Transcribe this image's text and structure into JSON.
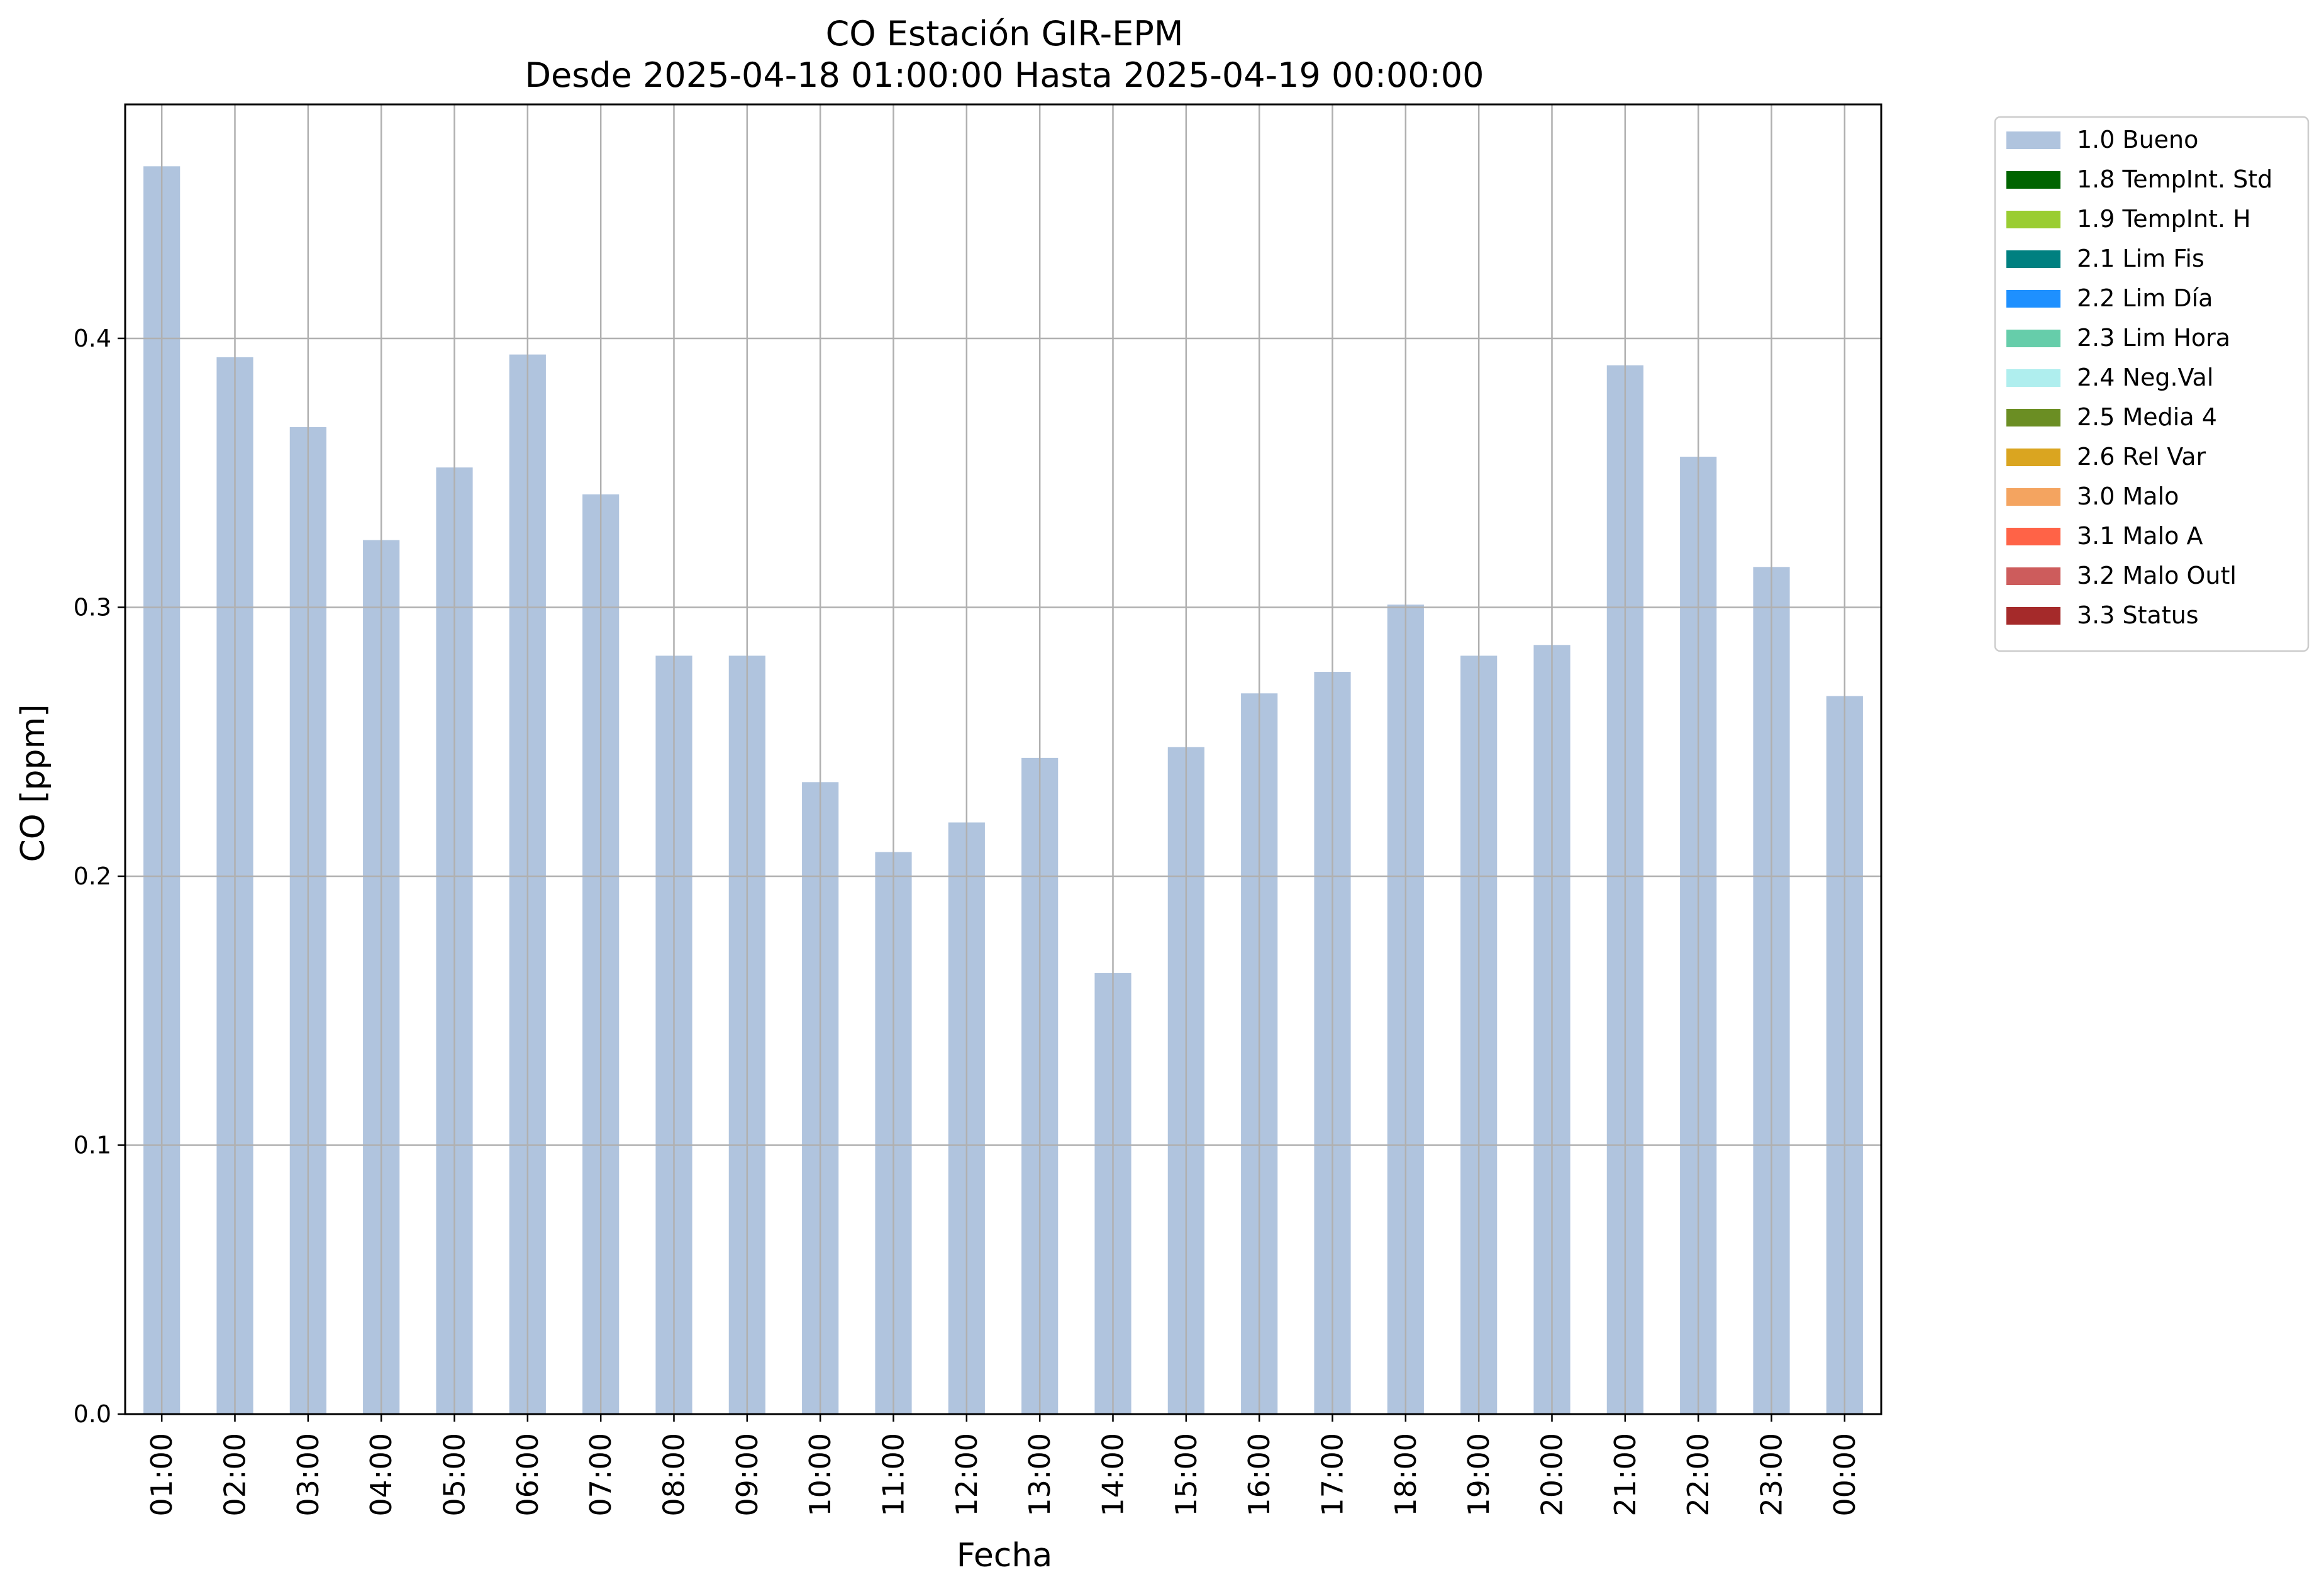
{
  "chart_data": {
    "type": "bar",
    "title": "CO Estación GIR-EPM",
    "subtitle": "Desde 2025-04-18 01:00:00 Hasta 2025-04-19 00:00:00",
    "xlabel": "Fecha",
    "ylabel": "CO [ppm]",
    "ylim": [
      0,
      0.487
    ],
    "yticks": [
      "0.0",
      "0.1",
      "0.2",
      "0.3",
      "0.4"
    ],
    "grid": true,
    "legend_position": "outside-right-top",
    "categories": [
      "01:00",
      "02:00",
      "03:00",
      "04:00",
      "05:00",
      "06:00",
      "07:00",
      "08:00",
      "09:00",
      "10:00",
      "11:00",
      "12:00",
      "13:00",
      "14:00",
      "15:00",
      "16:00",
      "17:00",
      "18:00",
      "19:00",
      "20:00",
      "21:00",
      "22:00",
      "23:00",
      "00:00"
    ],
    "series": [
      {
        "name": "1.0 Bueno",
        "color": "#b0c4de",
        "values": [
          0.464,
          0.393,
          0.367,
          0.325,
          0.352,
          0.394,
          0.342,
          0.282,
          0.282,
          0.235,
          0.209,
          0.22,
          0.244,
          0.164,
          0.248,
          0.268,
          0.276,
          0.301,
          0.282,
          0.286,
          0.39,
          0.356,
          0.315,
          0.267
        ]
      }
    ],
    "legend": [
      {
        "label": "1.0 Bueno",
        "color": "#b0c4de"
      },
      {
        "label": "1.8 TempInt. Std",
        "color": "#006400"
      },
      {
        "label": "1.9 TempInt. H",
        "color": "#9acd32"
      },
      {
        "label": "2.1 Lim Fis",
        "color": "#008080"
      },
      {
        "label": "2.2 Lim Día",
        "color": "#1e90ff"
      },
      {
        "label": "2.3 Lim Hora",
        "color": "#66cdaa"
      },
      {
        "label": "2.4 Neg.Val",
        "color": "#afeeee"
      },
      {
        "label": "2.5 Media 4",
        "color": "#6b8e23"
      },
      {
        "label": "2.6 Rel Var",
        "color": "#daa520"
      },
      {
        "label": "3.0 Malo",
        "color": "#f4a460"
      },
      {
        "label": "3.1 Malo A",
        "color": "#ff6347"
      },
      {
        "label": "3.2 Malo Outl",
        "color": "#cd5c5c"
      },
      {
        "label": "3.3 Status",
        "color": "#a52a2a"
      }
    ]
  }
}
